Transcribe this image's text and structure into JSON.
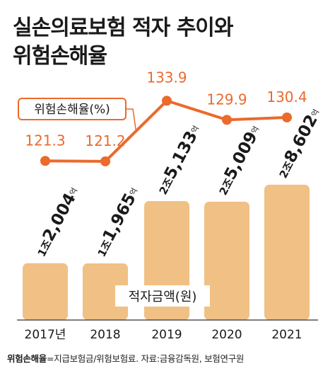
{
  "title_lines": [
    "실손의료보험 적자 추이와",
    "위험손해율"
  ],
  "colors": {
    "bar": "#F0C084",
    "line": "#EB6A2C",
    "label_line": "#EB6A2C",
    "text": "#1a1a1a"
  },
  "chart_data": {
    "type": "bar",
    "categories": [
      "2017년",
      "2018",
      "2019",
      "2020",
      "2021"
    ],
    "series": [
      {
        "name": "적자금액(원)",
        "type": "bar",
        "values": [
          1.2004,
          1.1965,
          2.5133,
          2.5009,
          2.8602
        ],
        "labels": [
          [
            "1조",
            "2,004",
            "억"
          ],
          [
            "1조",
            "1,965",
            "억"
          ],
          [
            "2조",
            "5,133",
            "억"
          ],
          [
            "2조",
            "5,009",
            "억"
          ],
          [
            "2조",
            "8,602",
            "억"
          ]
        ]
      },
      {
        "name": "위험손해율(%)",
        "type": "line",
        "values": [
          121.3,
          121.2,
          133.9,
          129.9,
          130.4
        ],
        "labels": [
          "121.3",
          "121.2",
          "133.9",
          "129.9",
          "130.4"
        ]
      }
    ],
    "bar_ylim": [
      0,
      4.1
    ],
    "line_ylim": [
      116,
      137.5
    ],
    "legend": {
      "line_label": "위험손해율(%)",
      "bar_label": "적자금액(원)"
    }
  },
  "footer": {
    "term": "위험손해율",
    "text": "=지급보험금/위험보험료. 자료:금융감독원, 보험연구원"
  }
}
